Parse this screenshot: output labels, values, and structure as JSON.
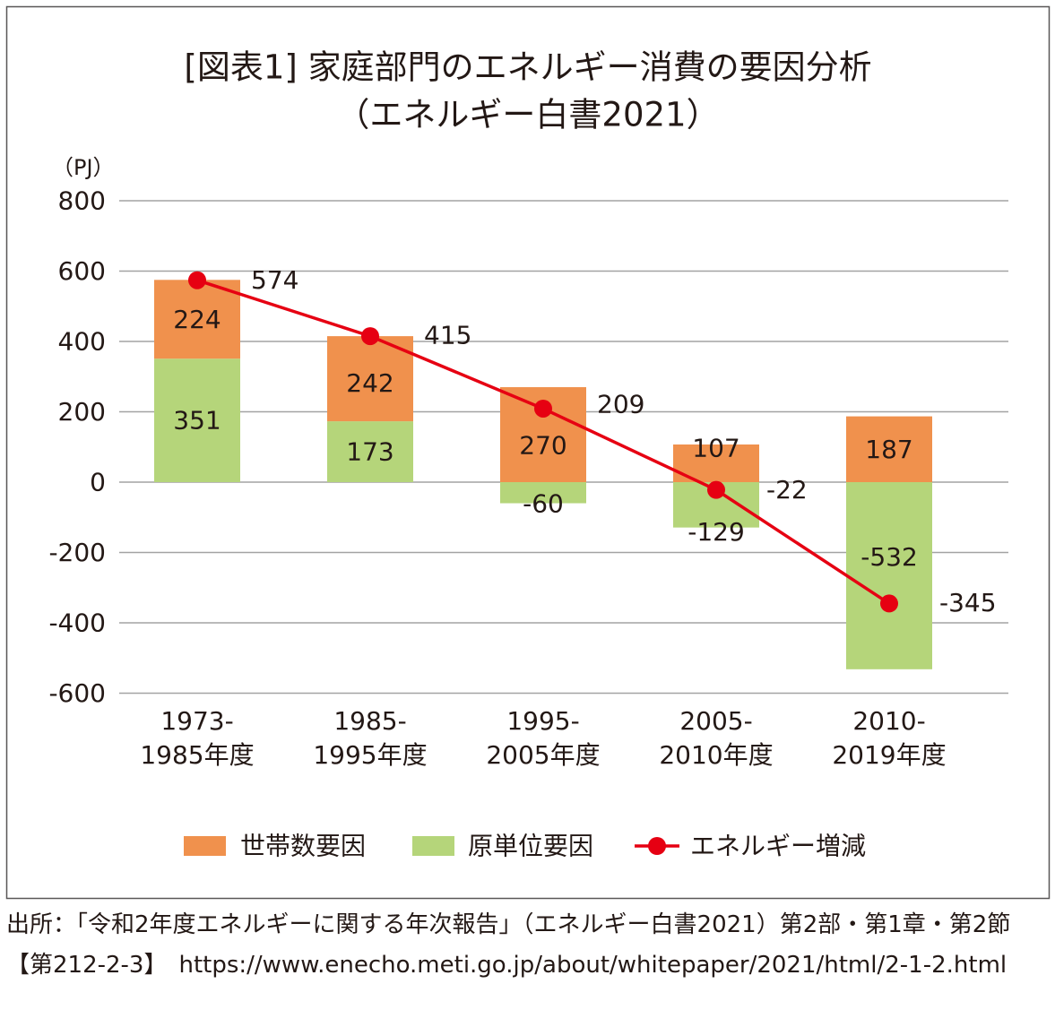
{
  "chart_data": {
    "type": "bar",
    "stacked": true,
    "title": "[図表1] 家庭部門のエネルギー消費の要因分析",
    "subtitle": "（エネルギー白書2021）",
    "xlabel": "",
    "ylabel": "（PJ）",
    "ylim": [
      -600,
      800
    ],
    "yticks": [
      800,
      600,
      400,
      200,
      0,
      -200,
      -400,
      -600
    ],
    "grid": true,
    "legend": "bottom",
    "categories": [
      "1973-\n1985年度",
      "1985-\n1995年度",
      "1995-\n2005年度",
      "2005-\n2010年度",
      "2010-\n2019年度"
    ],
    "series": [
      {
        "name": "世帯数要因",
        "type": "bar",
        "color": "#F0914D",
        "values": [
          224,
          242,
          270,
          107,
          187
        ]
      },
      {
        "name": "原単位要因",
        "type": "bar",
        "color": "#B5D57A",
        "values": [
          351,
          173,
          -60,
          -129,
          -532
        ]
      },
      {
        "name": "エネルギー増減",
        "type": "line",
        "color": "#E60012",
        "values": [
          574,
          415,
          209,
          -22,
          -345
        ]
      }
    ]
  },
  "source": {
    "text": "出所：「令和2年度エネルギーに関する年次報告」（エネルギー白書2021）第2部・第1章・第2節【第212-2-3】　https://www.enecho.meti.go.jp/about/whitepaper/2021/html/2-1-2.html"
  }
}
